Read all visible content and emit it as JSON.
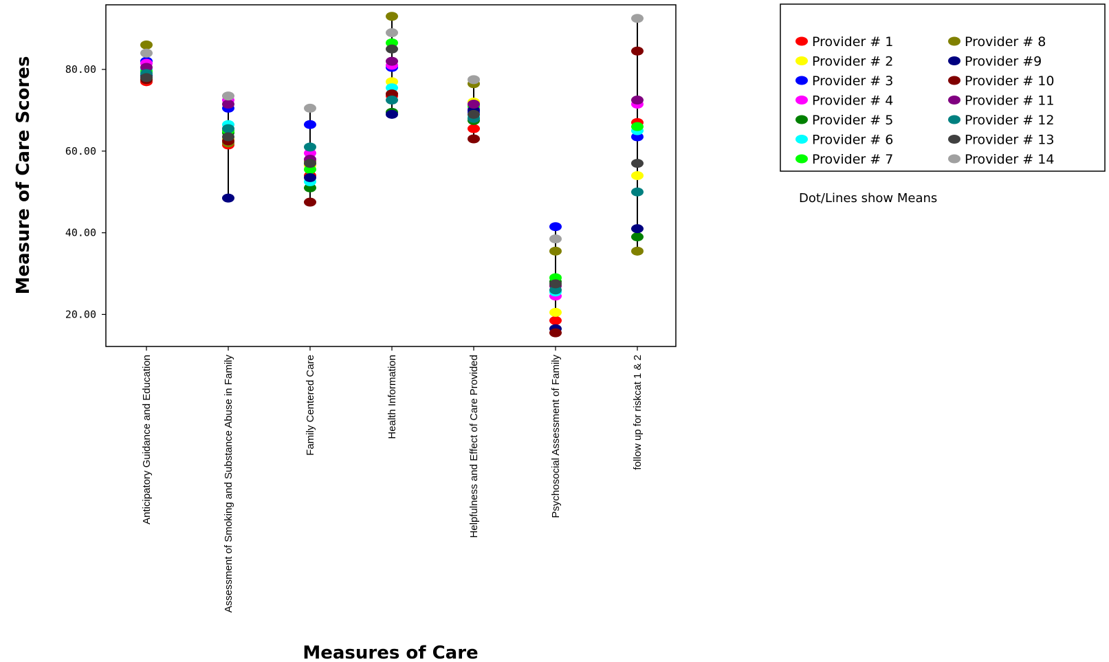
{
  "chart_data": {
    "type": "scatter",
    "title": "",
    "xlabel": "Measures of Care",
    "ylabel": "Measure of Care Scores",
    "ylim": [
      14,
      94
    ],
    "yticks": [
      20,
      40,
      60,
      80
    ],
    "ytick_labels": [
      "20.00",
      "40.00",
      "60.00",
      "80.00"
    ],
    "grid": false,
    "legend_position": "top-right",
    "note": "Dot/Lines show Means",
    "categories": [
      "Anticipatory Guidance and Education",
      "Assessment of Smoking and Substance Abuse in Family",
      "Family Centered Care",
      "Health Information",
      "Helpfulness and Effect of Care Provided",
      "Psychosocial Assessment of Family",
      "follow up for riskcat 1 & 2"
    ],
    "series": [
      {
        "name": "Provider # 1",
        "color": "#ff0000",
        "values": [
          77,
          61.5,
          54,
          73.5,
          65.5,
          18.5,
          67
        ]
      },
      {
        "name": "Provider # 2",
        "color": "#ffff00",
        "values": [
          77.5,
          63,
          56.5,
          77,
          72,
          20.5,
          54
        ]
      },
      {
        "name": "Provider # 3",
        "color": "#0000ff",
        "values": [
          82,
          70.5,
          66.5,
          80.5,
          69.5,
          41.5,
          63.5
        ]
      },
      {
        "name": "Provider # 4",
        "color": "#ff00ff",
        "values": [
          81.5,
          72.5,
          59.5,
          81,
          70.5,
          24.5,
          71.5
        ]
      },
      {
        "name": "Provider # 5",
        "color": "#008000",
        "values": [
          78,
          64.5,
          51,
          69.5,
          67.5,
          28,
          39
        ]
      },
      {
        "name": "Provider # 6",
        "color": "#00ffff",
        "values": [
          80,
          66.5,
          52.5,
          75.5,
          68.5,
          25.5,
          65
        ]
      },
      {
        "name": "Provider # 7",
        "color": "#00ff00",
        "values": [
          79.5,
          65,
          55.5,
          86.5,
          71,
          29,
          66
        ]
      },
      {
        "name": "Provider # 8",
        "color": "#808000",
        "values": [
          86,
          62,
          57.5,
          93,
          76.5,
          35.5,
          35.5
        ]
      },
      {
        "name": "Provider #9",
        "color": "#000080",
        "values": [
          78.5,
          48.5,
          53.5,
          69,
          70,
          16.5,
          41
        ]
      },
      {
        "name": "Provider # 10",
        "color": "#800000",
        "values": [
          77.5,
          62.5,
          47.5,
          74,
          63,
          15.5,
          84.5
        ]
      },
      {
        "name": "Provider # 11",
        "color": "#800080",
        "values": [
          80.5,
          71.5,
          58,
          82,
          71.5,
          27,
          72.5
        ]
      },
      {
        "name": "Provider # 12",
        "color": "#008080",
        "values": [
          79,
          65.5,
          61,
          72.5,
          68,
          26,
          50
        ]
      },
      {
        "name": "Provider # 13",
        "color": "#404040",
        "values": [
          78,
          63.5,
          57,
          85,
          69,
          27.5,
          57
        ]
      },
      {
        "name": "Provider # 14",
        "color": "#a0a0a0",
        "values": [
          84,
          73.5,
          70.5,
          89,
          77.5,
          38.5,
          92.5
        ]
      }
    ]
  }
}
